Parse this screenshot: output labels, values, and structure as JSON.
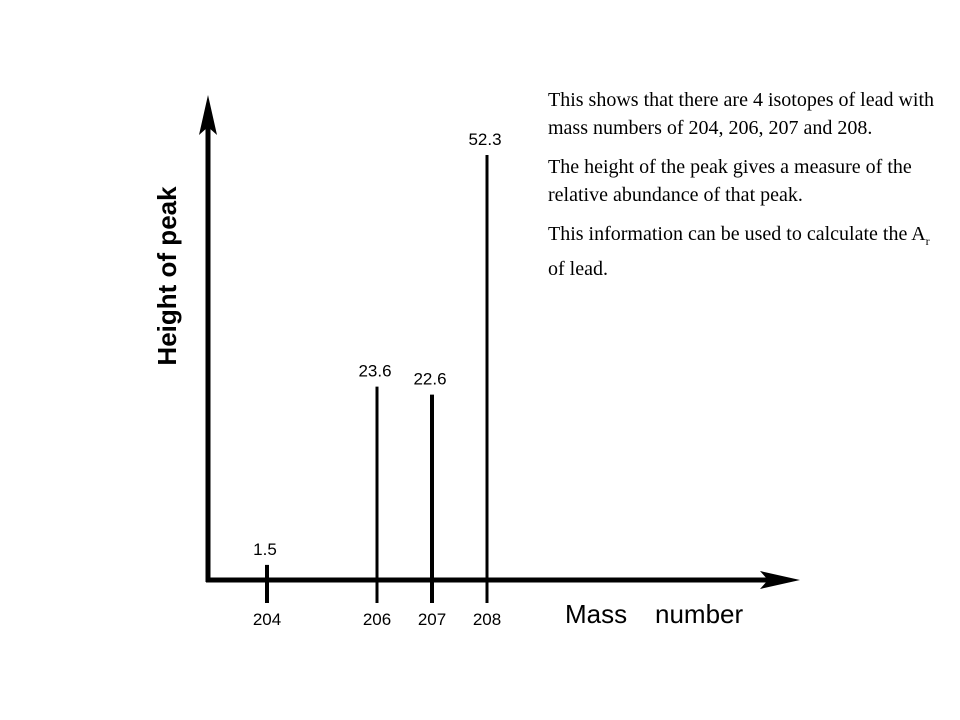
{
  "chart_data": {
    "type": "bar",
    "style": "stick spectrum with arrowed axes, bar thickness varies",
    "categories": [
      "204",
      "206",
      "207",
      "208"
    ],
    "values": [
      1.5,
      23.6,
      22.6,
      52.3
    ],
    "value_labels": [
      "1.5",
      "23.6",
      "22.6",
      "52.3"
    ],
    "xlabel_word1": "Mass",
    "xlabel_word2": "number",
    "ylabel": "Height of peak",
    "ylim": [
      0,
      60
    ],
    "grid": false,
    "color": "#000000"
  },
  "note": {
    "p1": "This shows that there are 4 isotopes of lead with mass numbers of 204, 206, 207 and 208.",
    "p2": "The height of the peak gives a measure of the relative abundance of that peak.",
    "p3_before": "This information can be used to calculate the A",
    "p3_sub": "r",
    "p3_after": " of lead."
  }
}
